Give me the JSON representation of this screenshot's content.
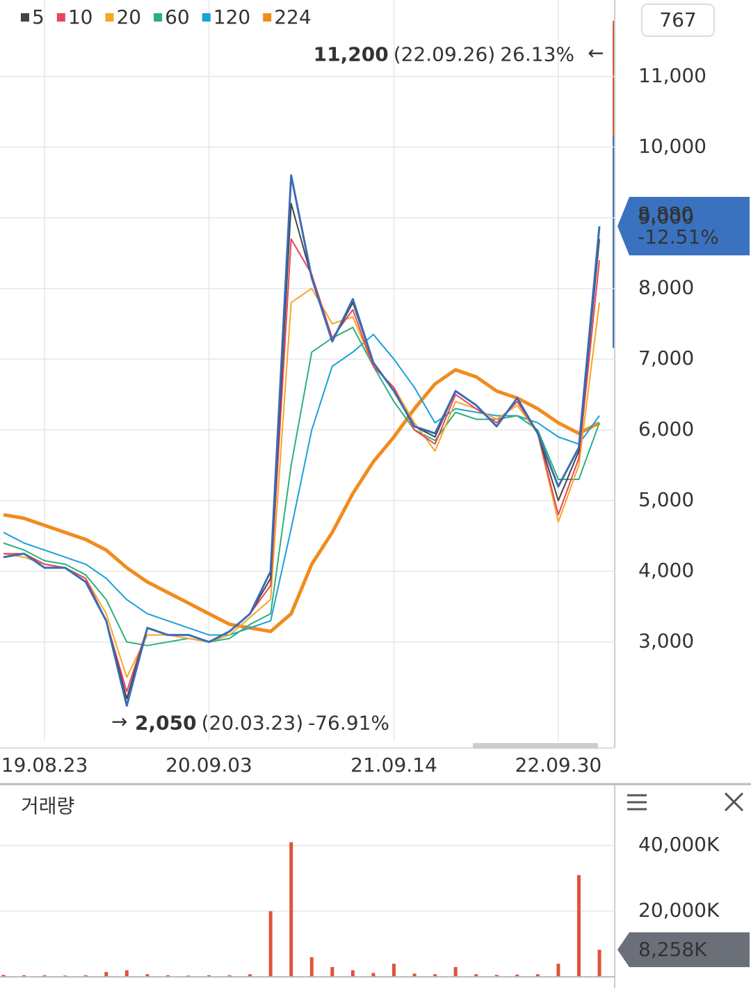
{
  "badge": "767",
  "chart_data": [
    {
      "type": "line",
      "categories": [
        null,
        null,
        "19.08.23",
        null,
        null,
        null,
        null,
        null,
        null,
        null,
        "20.09.03",
        null,
        null,
        null,
        null,
        null,
        null,
        null,
        null,
        "21.09.14",
        null,
        null,
        null,
        null,
        null,
        null,
        null,
        "22.09.30",
        null,
        null
      ],
      "values": [
        4200,
        4250,
        4050,
        4050,
        3850,
        3300,
        2100,
        3200,
        3100,
        3100,
        3000,
        3150,
        3400,
        4000,
        9600,
        8150,
        7250,
        7850,
        6950,
        6550,
        6050,
        5950,
        6550,
        6350,
        6050,
        6450,
        5950,
        5200,
        5750,
        8880
      ],
      "color": "#3a6bb5",
      "series": [
        {
          "name": "5",
          "color": "#444444",
          "values": [
            4200,
            4250,
            4050,
            4050,
            3850,
            3300,
            2200,
            3200,
            3100,
            3100,
            3000,
            3150,
            3400,
            3900,
            9200,
            8150,
            7250,
            7800,
            6950,
            6550,
            6050,
            5900,
            6550,
            6350,
            6050,
            6450,
            5950,
            5000,
            5700,
            8700
          ]
        },
        {
          "name": "10",
          "color": "#e8445a",
          "values": [
            4250,
            4250,
            4100,
            4050,
            3900,
            3300,
            2300,
            3200,
            3100,
            3100,
            3000,
            3150,
            3400,
            3800,
            8700,
            8200,
            7300,
            7700,
            6900,
            6600,
            6000,
            5800,
            6500,
            6300,
            6100,
            6400,
            5950,
            4800,
            5600,
            8400
          ]
        },
        {
          "name": "20",
          "color": "#f5a623",
          "values": [
            4250,
            4200,
            4100,
            4050,
            3900,
            3400,
            2500,
            3100,
            3100,
            3050,
            3000,
            3100,
            3350,
            3600,
            7800,
            8000,
            7500,
            7600,
            6900,
            6600,
            6100,
            5700,
            6400,
            6300,
            6150,
            6350,
            5950,
            4700,
            5500,
            7800
          ]
        },
        {
          "name": "60",
          "color": "#2bb07a",
          "values": [
            4400,
            4300,
            4150,
            4100,
            3950,
            3600,
            3000,
            2950,
            3000,
            3050,
            3000,
            3050,
            3250,
            3400,
            5500,
            7100,
            7300,
            7450,
            6900,
            6400,
            6000,
            5850,
            6250,
            6150,
            6150,
            6200,
            6000,
            5300,
            5300,
            6100
          ]
        },
        {
          "name": "120",
          "color": "#1aa0d8",
          "values": [
            4550,
            4400,
            4300,
            4200,
            4100,
            3900,
            3600,
            3400,
            3300,
            3200,
            3100,
            3100,
            3200,
            3300,
            4600,
            6000,
            6900,
            7100,
            7350,
            7000,
            6600,
            6100,
            6300,
            6250,
            6200,
            6200,
            6100,
            5900,
            5800,
            6200
          ]
        },
        {
          "name": "224",
          "color": "#f08c1e",
          "values": [
            4800,
            4750,
            4650,
            4550,
            4450,
            4300,
            4050,
            3850,
            3700,
            3550,
            3400,
            3250,
            3200,
            3150,
            3400,
            4100,
            4550,
            5100,
            5550,
            5900,
            6300,
            6650,
            6850,
            6750,
            6550,
            6450,
            6300,
            6100,
            5950,
            6100
          ]
        }
      ],
      "ylim": [
        1600,
        12080
      ],
      "yticks": [
        {
          "value": 3000,
          "label": "3,000"
        },
        {
          "value": 4000,
          "label": "4,000"
        },
        {
          "value": 5000,
          "label": "5,000"
        },
        {
          "value": 6000,
          "label": "6,000"
        },
        {
          "value": 7000,
          "label": "7,000"
        },
        {
          "value": 8000,
          "label": "8,000"
        },
        {
          "value": 9000,
          "label": "9,000"
        },
        {
          "value": 10000,
          "label": "10,000"
        },
        {
          "value": 11000,
          "label": "11,000"
        }
      ],
      "grid": true,
      "high": {
        "value": 11200,
        "label": "11,200",
        "date": "(22.09.26)",
        "change": "26.13%"
      },
      "low": {
        "value": 2050,
        "label": "2,050",
        "date": "(20.03.23)",
        "change": "-76.91%"
      },
      "current": {
        "value": 8880,
        "label": "8,880",
        "change": "-12.51%"
      }
    },
    {
      "type": "bar",
      "title": "거래량",
      "values": [
        600000,
        500000,
        500000,
        400000,
        500000,
        1500000,
        2000000,
        800000,
        500000,
        400000,
        500000,
        500000,
        800000,
        20000000,
        41000000,
        6000000,
        3000000,
        2000000,
        1200000,
        4000000,
        1000000,
        800000,
        3000000,
        800000,
        600000,
        700000,
        800000,
        4000000,
        31000000,
        8258000
      ],
      "color": "#e0533a",
      "ylim": [
        0,
        57000000
      ],
      "yticks": [
        {
          "value": 20000000,
          "label": "20,000K"
        },
        {
          "value": 40000000,
          "label": "40,000K"
        }
      ],
      "grid": true,
      "current": {
        "value": 8258000,
        "label": "8,258K"
      }
    }
  ]
}
